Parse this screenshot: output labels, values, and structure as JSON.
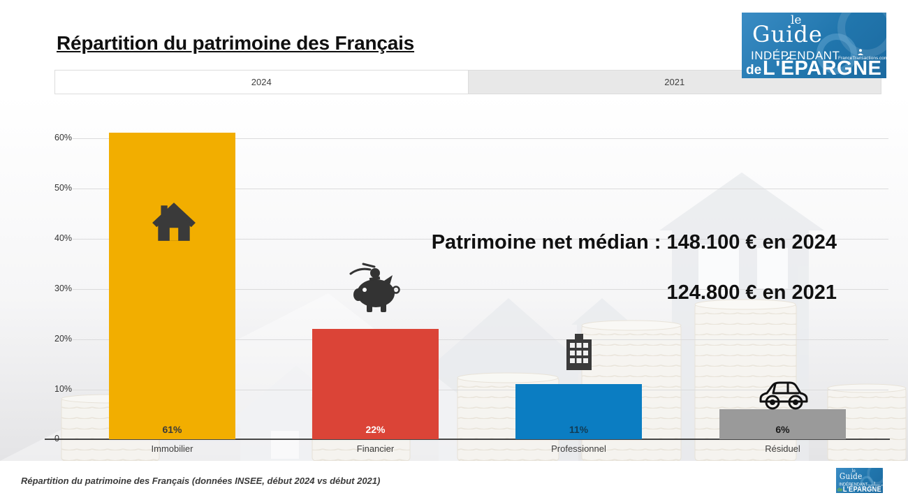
{
  "title": "Répartition du patrimoine des Français",
  "tabs": [
    {
      "label": "2024",
      "active": true
    },
    {
      "label": "2021",
      "active": false
    }
  ],
  "logo": {
    "le": "le",
    "guide": "Guide",
    "independant": "INDÉPENDANT",
    "france_transactions": "FranceTransactions.com",
    "de": "de",
    "epargne": "L'ÉPARGNE",
    "brand_blue": "#2176AD",
    "brand_green": "#7DC243"
  },
  "annotation": {
    "line1": "Patrimoine net médian : 148.100 € en 2024",
    "line2": "124.800 € en 2021"
  },
  "chart_data": {
    "type": "bar",
    "categories": [
      "Immobilier",
      "Financier",
      "Professionnel",
      "Résiduel"
    ],
    "values": [
      61,
      22,
      11,
      6
    ],
    "value_labels": [
      "61%",
      "22%",
      "11%",
      "6%"
    ],
    "colors": [
      "#F2AE00",
      "#DB4437",
      "#0B7DC2",
      "#9A9A9A"
    ],
    "value_label_colors": [
      "#3a3a3a",
      "#ffffff",
      "#123c55",
      "#1a1a1a"
    ],
    "icons": [
      "house-icon",
      "piggy-bank-icon",
      "building-icon",
      "car-icon"
    ],
    "y_ticks": [
      "60%",
      "50%",
      "40%",
      "30%",
      "20%",
      "10%",
      "0"
    ],
    "ylim": [
      0,
      62
    ],
    "grid": true,
    "legend": "none",
    "title": "",
    "xlabel": "",
    "ylabel": ""
  },
  "footer": {
    "caption": "Répartition du patrimoine des Français (données INSEE, début 2024 vs début 2021)"
  }
}
